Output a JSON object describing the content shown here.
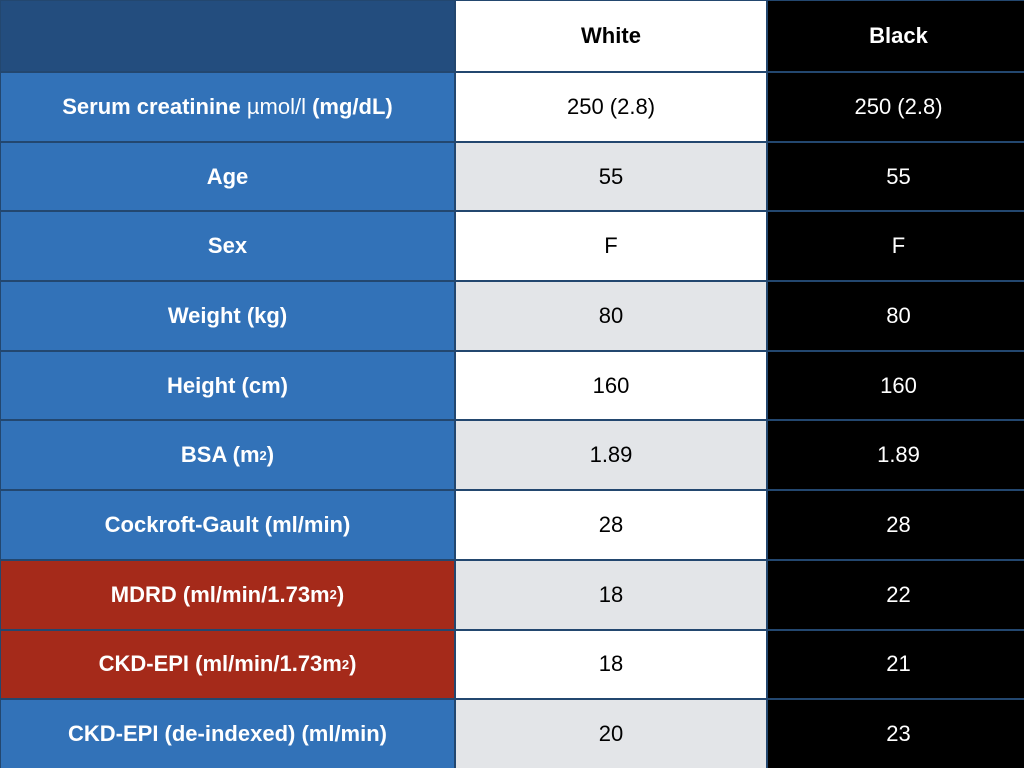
{
  "table": {
    "headers": {
      "corner": "",
      "white": "White",
      "black": "Black"
    },
    "rows": [
      {
        "label_bold": "Serum creatinine",
        "label_light": "µmol/l",
        "label_tail": "(mg/dL)",
        "white": "250 (2.8)",
        "black": "250 (2.8)",
        "highlight": false
      },
      {
        "label": "Age",
        "white": "55",
        "black": "55",
        "highlight": false
      },
      {
        "label": "Sex",
        "white": "F",
        "black": "F",
        "highlight": false
      },
      {
        "label": "Weight (kg)",
        "white": "80",
        "black": "80",
        "highlight": false
      },
      {
        "label": "Height (cm)",
        "white": "160",
        "black": "160",
        "highlight": false
      },
      {
        "label_pre": "BSA (m",
        "label_sup": "2",
        "label_post": ")",
        "white": "1.89",
        "black": "1.89",
        "highlight": false
      },
      {
        "label": "Cockroft-Gault (ml/min)",
        "white": "28",
        "black": "28",
        "highlight": false
      },
      {
        "label_pre": "MDRD (ml/min/1.73m",
        "label_sup": "2",
        "label_post": ")",
        "white": "18",
        "black": "22",
        "highlight": true
      },
      {
        "label_pre": "CKD-EPI (ml/min/1.73m",
        "label_sup": "2",
        "label_post": ")",
        "white": "18",
        "black": "21",
        "highlight": true
      },
      {
        "label": "CKD-EPI (de-indexed) (ml/min)",
        "white": "20",
        "black": "23",
        "highlight": false
      }
    ]
  },
  "colors": {
    "label_blue": "#3272b8",
    "label_red": "#a52a1a",
    "corner_navy": "#234d7e",
    "white_col_alt": "#e3e5e8",
    "black_col": "#000000"
  }
}
